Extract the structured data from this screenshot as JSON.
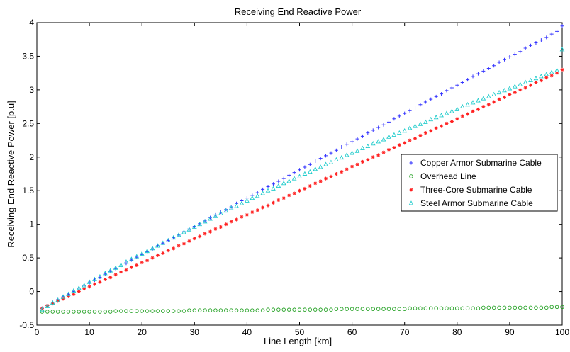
{
  "chart_data": {
    "type": "scatter",
    "title": "Receiving End Reactive Power",
    "xlabel": "Line Length [km]",
    "ylabel": "Receiving End Reactive Power [p.u]",
    "xlim": [
      0,
      100
    ],
    "ylim": [
      -0.5,
      4
    ],
    "xticks": [
      0,
      10,
      20,
      30,
      40,
      50,
      60,
      70,
      80,
      90,
      100
    ],
    "yticks": [
      -0.5,
      0,
      0.5,
      1,
      1.5,
      2,
      2.5,
      3,
      3.5,
      4
    ],
    "xtick_labels": [
      "0",
      "10",
      "20",
      "30",
      "40",
      "50",
      "60",
      "70",
      "80",
      "90",
      "100"
    ],
    "ytick_labels": [
      "-0.5",
      "0",
      "0.5",
      "1",
      "1.5",
      "2",
      "2.5",
      "3",
      "3.5",
      "4"
    ],
    "grid": false,
    "legend_position": "center-right",
    "series": [
      {
        "name": "Copper Armor Submarine Cable",
        "marker": "plus",
        "color": "#3333ff",
        "x": [
          1,
          2,
          3,
          4,
          5,
          6,
          7,
          8,
          9,
          10,
          11,
          12,
          13,
          14,
          15,
          16,
          17,
          18,
          19,
          20,
          21,
          22,
          23,
          24,
          25,
          26,
          27,
          28,
          29,
          30,
          31,
          32,
          33,
          34,
          35,
          36,
          37,
          38,
          39,
          40,
          41,
          42,
          43,
          44,
          45,
          46,
          47,
          48,
          49,
          50,
          51,
          52,
          53,
          54,
          55,
          56,
          57,
          58,
          59,
          60,
          61,
          62,
          63,
          64,
          65,
          66,
          67,
          68,
          69,
          70,
          71,
          72,
          73,
          74,
          75,
          76,
          77,
          78,
          79,
          80,
          81,
          82,
          83,
          84,
          85,
          86,
          87,
          88,
          89,
          90,
          91,
          92,
          93,
          94,
          95,
          96,
          97,
          98,
          99,
          100
        ],
        "y": [
          -0.25,
          -0.21,
          -0.16,
          -0.12,
          -0.08,
          -0.04,
          0.0,
          0.05,
          0.09,
          0.13,
          0.17,
          0.21,
          0.26,
          0.3,
          0.34,
          0.38,
          0.42,
          0.47,
          0.51,
          0.55,
          0.59,
          0.63,
          0.68,
          0.72,
          0.76,
          0.8,
          0.84,
          0.89,
          0.93,
          0.97,
          1.01,
          1.05,
          1.1,
          1.14,
          1.18,
          1.22,
          1.26,
          1.31,
          1.35,
          1.39,
          1.43,
          1.47,
          1.52,
          1.56,
          1.6,
          1.64,
          1.68,
          1.73,
          1.77,
          1.81,
          1.85,
          1.89,
          1.94,
          1.98,
          2.02,
          2.06,
          2.1,
          2.15,
          2.19,
          2.23,
          2.27,
          2.31,
          2.36,
          2.4,
          2.44,
          2.48,
          2.52,
          2.57,
          2.61,
          2.65,
          2.69,
          2.73,
          2.78,
          2.82,
          2.86,
          2.9,
          2.94,
          2.99,
          3.03,
          3.07,
          3.11,
          3.15,
          3.2,
          3.24,
          3.28,
          3.32,
          3.36,
          3.41,
          3.45,
          3.49,
          3.53,
          3.57,
          3.62,
          3.66,
          3.7,
          3.74,
          3.78,
          3.83,
          3.87,
          3.95
        ]
      },
      {
        "name": "Overhead Line",
        "marker": "circle",
        "color": "#22a022",
        "x": [
          1,
          2,
          3,
          4,
          5,
          6,
          7,
          8,
          9,
          10,
          11,
          12,
          13,
          14,
          15,
          16,
          17,
          18,
          19,
          20,
          21,
          22,
          23,
          24,
          25,
          26,
          27,
          28,
          29,
          30,
          31,
          32,
          33,
          34,
          35,
          36,
          37,
          38,
          39,
          40,
          41,
          42,
          43,
          44,
          45,
          46,
          47,
          48,
          49,
          50,
          51,
          52,
          53,
          54,
          55,
          56,
          57,
          58,
          59,
          60,
          61,
          62,
          63,
          64,
          65,
          66,
          67,
          68,
          69,
          70,
          71,
          72,
          73,
          74,
          75,
          76,
          77,
          78,
          79,
          80,
          81,
          82,
          83,
          84,
          85,
          86,
          87,
          88,
          89,
          90,
          91,
          92,
          93,
          94,
          95,
          96,
          97,
          98,
          99,
          100
        ],
        "y": [
          -0.3,
          -0.3,
          -0.3,
          -0.3,
          -0.3,
          -0.3,
          -0.3,
          -0.3,
          -0.3,
          -0.3,
          -0.3,
          -0.3,
          -0.3,
          -0.3,
          -0.29,
          -0.29,
          -0.29,
          -0.29,
          -0.29,
          -0.29,
          -0.29,
          -0.29,
          -0.29,
          -0.29,
          -0.29,
          -0.29,
          -0.29,
          -0.29,
          -0.28,
          -0.28,
          -0.28,
          -0.28,
          -0.28,
          -0.28,
          -0.28,
          -0.28,
          -0.28,
          -0.28,
          -0.28,
          -0.28,
          -0.28,
          -0.28,
          -0.28,
          -0.27,
          -0.27,
          -0.27,
          -0.27,
          -0.27,
          -0.27,
          -0.27,
          -0.27,
          -0.27,
          -0.27,
          -0.27,
          -0.27,
          -0.27,
          -0.26,
          -0.26,
          -0.26,
          -0.26,
          -0.26,
          -0.26,
          -0.26,
          -0.26,
          -0.26,
          -0.26,
          -0.26,
          -0.26,
          -0.26,
          -0.26,
          -0.25,
          -0.25,
          -0.25,
          -0.25,
          -0.25,
          -0.25,
          -0.25,
          -0.25,
          -0.25,
          -0.25,
          -0.25,
          -0.25,
          -0.25,
          -0.25,
          -0.24,
          -0.24,
          -0.24,
          -0.24,
          -0.24,
          -0.24,
          -0.24,
          -0.24,
          -0.24,
          -0.24,
          -0.24,
          -0.24,
          -0.24,
          -0.23,
          -0.23,
          -0.23
        ]
      },
      {
        "name": "Three-Core Submarine Cable",
        "marker": "star",
        "color": "#ff2020",
        "x": [
          1,
          2,
          3,
          4,
          5,
          6,
          7,
          8,
          9,
          10,
          11,
          12,
          13,
          14,
          15,
          16,
          17,
          18,
          19,
          20,
          21,
          22,
          23,
          24,
          25,
          26,
          27,
          28,
          29,
          30,
          31,
          32,
          33,
          34,
          35,
          36,
          37,
          38,
          39,
          40,
          41,
          42,
          43,
          44,
          45,
          46,
          47,
          48,
          49,
          50,
          51,
          52,
          53,
          54,
          55,
          56,
          57,
          58,
          59,
          60,
          61,
          62,
          63,
          64,
          65,
          66,
          67,
          68,
          69,
          70,
          71,
          72,
          73,
          74,
          75,
          76,
          77,
          78,
          79,
          80,
          81,
          82,
          83,
          84,
          85,
          86,
          87,
          88,
          89,
          90,
          91,
          92,
          93,
          94,
          95,
          96,
          97,
          98,
          99,
          100
        ],
        "y": [
          -0.25,
          -0.21,
          -0.18,
          -0.14,
          -0.11,
          -0.07,
          -0.04,
          0.0,
          0.04,
          0.07,
          0.11,
          0.14,
          0.18,
          0.21,
          0.25,
          0.29,
          0.32,
          0.36,
          0.39,
          0.43,
          0.46,
          0.5,
          0.54,
          0.57,
          0.61,
          0.64,
          0.68,
          0.71,
          0.75,
          0.79,
          0.82,
          0.86,
          0.89,
          0.93,
          0.96,
          1.0,
          1.04,
          1.07,
          1.11,
          1.14,
          1.18,
          1.21,
          1.25,
          1.28,
          1.32,
          1.36,
          1.39,
          1.43,
          1.46,
          1.5,
          1.53,
          1.57,
          1.61,
          1.64,
          1.68,
          1.71,
          1.75,
          1.78,
          1.82,
          1.86,
          1.89,
          1.93,
          1.96,
          2.0,
          2.03,
          2.07,
          2.11,
          2.14,
          2.18,
          2.21,
          2.25,
          2.28,
          2.32,
          2.36,
          2.39,
          2.43,
          2.46,
          2.5,
          2.53,
          2.57,
          2.61,
          2.64,
          2.68,
          2.71,
          2.75,
          2.78,
          2.82,
          2.86,
          2.89,
          2.93,
          2.96,
          3.0,
          3.03,
          3.07,
          3.11,
          3.14,
          3.18,
          3.21,
          3.25,
          3.3
        ]
      },
      {
        "name": "Steel Armor Submarine Cable",
        "marker": "triangle",
        "color": "#22cccc",
        "x": [
          1,
          2,
          3,
          4,
          5,
          6,
          7,
          8,
          9,
          10,
          11,
          12,
          13,
          14,
          15,
          16,
          17,
          18,
          19,
          20,
          21,
          22,
          23,
          24,
          25,
          26,
          27,
          28,
          29,
          30,
          31,
          32,
          33,
          34,
          35,
          36,
          37,
          38,
          39,
          40,
          41,
          42,
          43,
          44,
          45,
          46,
          47,
          48,
          49,
          50,
          51,
          52,
          53,
          54,
          55,
          56,
          57,
          58,
          59,
          60,
          61,
          62,
          63,
          64,
          65,
          66,
          67,
          68,
          69,
          70,
          71,
          72,
          73,
          74,
          75,
          76,
          77,
          78,
          79,
          80,
          81,
          82,
          83,
          84,
          85,
          86,
          87,
          88,
          89,
          90,
          91,
          92,
          93,
          94,
          95,
          96,
          97,
          98,
          99,
          100
        ],
        "y": [
          -0.27,
          -0.22,
          -0.17,
          -0.13,
          -0.08,
          -0.04,
          0.01,
          0.05,
          0.09,
          0.14,
          0.18,
          0.22,
          0.27,
          0.31,
          0.35,
          0.39,
          0.44,
          0.48,
          0.52,
          0.56,
          0.6,
          0.64,
          0.68,
          0.72,
          0.76,
          0.8,
          0.84,
          0.88,
          0.92,
          0.96,
          1.0,
          1.04,
          1.08,
          1.12,
          1.16,
          1.2,
          1.24,
          1.27,
          1.31,
          1.35,
          1.39,
          1.42,
          1.46,
          1.5,
          1.53,
          1.57,
          1.61,
          1.64,
          1.68,
          1.71,
          1.75,
          1.78,
          1.82,
          1.85,
          1.89,
          1.92,
          1.96,
          1.99,
          2.03,
          2.06,
          2.09,
          2.13,
          2.16,
          2.2,
          2.23,
          2.26,
          2.3,
          2.33,
          2.36,
          2.39,
          2.43,
          2.46,
          2.49,
          2.52,
          2.56,
          2.59,
          2.62,
          2.65,
          2.68,
          2.71,
          2.75,
          2.78,
          2.81,
          2.84,
          2.87,
          2.9,
          2.93,
          2.96,
          2.99,
          3.02,
          3.05,
          3.08,
          3.11,
          3.14,
          3.17,
          3.2,
          3.23,
          3.26,
          3.29,
          3.6
        ]
      }
    ]
  }
}
